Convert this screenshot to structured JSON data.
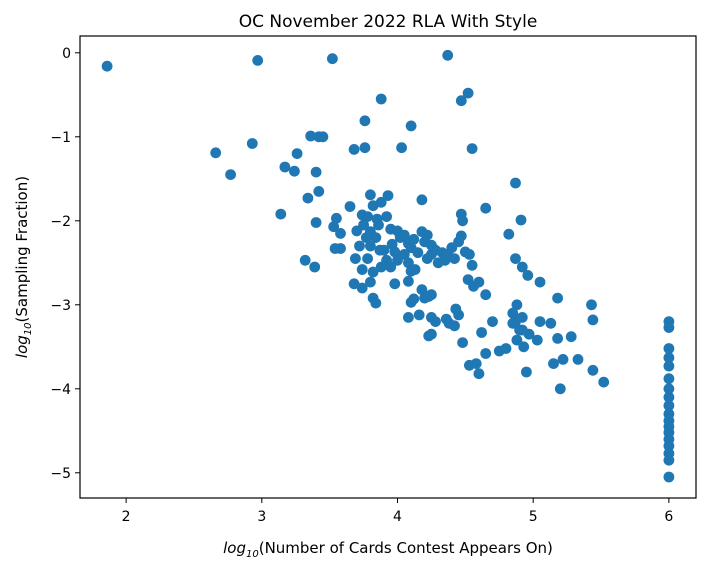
{
  "chart_data": {
    "type": "scatter",
    "title": "OC November 2022 RLA With Style",
    "xlabel_log": "log",
    "xlabel_sub": "10",
    "xlabel_rest": "(Number of Cards Contest Appears On)",
    "ylabel_log": "log",
    "ylabel_sub": "10",
    "ylabel_rest": "(Sampling Fraction)",
    "xlim": [
      1.66,
      6.2
    ],
    "ylim": [
      -5.3,
      0.2
    ],
    "xticks": [
      2,
      3,
      4,
      5,
      6
    ],
    "xtick_labels": [
      "2",
      "3",
      "4",
      "5",
      "6"
    ],
    "yticks": [
      0,
      -1,
      -2,
      -3,
      -4,
      -5
    ],
    "ytick_labels": [
      "0",
      "−1",
      "−2",
      "−3",
      "−4",
      "−5"
    ],
    "grid": false,
    "marker_color": "#1f77b4",
    "points": [
      [
        1.86,
        -0.16
      ],
      [
        2.97,
        -0.09
      ],
      [
        3.52,
        -0.07
      ],
      [
        4.37,
        -0.03
      ],
      [
        3.88,
        -0.55
      ],
      [
        4.47,
        -0.57
      ],
      [
        4.52,
        -0.48
      ],
      [
        3.76,
        -0.81
      ],
      [
        4.1,
        -0.87
      ],
      [
        3.36,
        -0.99
      ],
      [
        3.42,
        -1.0
      ],
      [
        3.45,
        -1.0
      ],
      [
        2.66,
        -1.19
      ],
      [
        2.93,
        -1.08
      ],
      [
        3.26,
        -1.2
      ],
      [
        3.68,
        -1.15
      ],
      [
        3.76,
        -1.13
      ],
      [
        4.03,
        -1.13
      ],
      [
        4.55,
        -1.14
      ],
      [
        2.77,
        -1.45
      ],
      [
        3.17,
        -1.36
      ],
      [
        3.24,
        -1.41
      ],
      [
        3.4,
        -1.42
      ],
      [
        3.42,
        -1.65
      ],
      [
        3.34,
        -1.73
      ],
      [
        3.14,
        -1.92
      ],
      [
        3.4,
        -2.02
      ],
      [
        3.55,
        -1.97
      ],
      [
        3.58,
        -2.15
      ],
      [
        3.58,
        -2.33
      ],
      [
        3.54,
        -2.33
      ],
      [
        3.32,
        -2.47
      ],
      [
        3.39,
        -2.55
      ],
      [
        3.53,
        -2.07
      ],
      [
        3.65,
        -1.83
      ],
      [
        3.74,
        -1.93
      ],
      [
        3.78,
        -1.95
      ],
      [
        3.8,
        -1.69
      ],
      [
        3.82,
        -1.82
      ],
      [
        3.85,
        -1.98
      ],
      [
        3.88,
        -1.78
      ],
      [
        3.93,
        -1.7
      ],
      [
        3.92,
        -1.95
      ],
      [
        3.8,
        -2.13
      ],
      [
        3.86,
        -2.05
      ],
      [
        3.84,
        -2.2
      ],
      [
        3.77,
        -2.2
      ],
      [
        3.75,
        -2.05
      ],
      [
        3.7,
        -2.12
      ],
      [
        3.72,
        -2.3
      ],
      [
        3.8,
        -2.3
      ],
      [
        3.78,
        -2.45
      ],
      [
        3.74,
        -2.58
      ],
      [
        3.69,
        -2.45
      ],
      [
        3.82,
        -2.61
      ],
      [
        3.88,
        -2.55
      ],
      [
        3.92,
        -2.47
      ],
      [
        3.96,
        -2.28
      ],
      [
        3.95,
        -2.55
      ],
      [
        3.98,
        -2.37
      ],
      [
        3.9,
        -2.35
      ],
      [
        3.87,
        -2.35
      ],
      [
        3.95,
        -2.1
      ],
      [
        4.0,
        -2.12
      ],
      [
        4.02,
        -2.2
      ],
      [
        4.05,
        -2.17
      ],
      [
        4.08,
        -2.27
      ],
      [
        4.1,
        -2.32
      ],
      [
        4.05,
        -2.4
      ],
      [
        4.0,
        -2.47
      ],
      [
        4.08,
        -2.5
      ],
      [
        4.1,
        -2.6
      ],
      [
        4.13,
        -2.58
      ],
      [
        4.15,
        -2.38
      ],
      [
        4.12,
        -2.22
      ],
      [
        4.18,
        -2.13
      ],
      [
        4.2,
        -2.25
      ],
      [
        4.22,
        -2.17
      ],
      [
        4.18,
        -1.75
      ],
      [
        4.25,
        -2.29
      ],
      [
        4.22,
        -2.45
      ],
      [
        4.25,
        -2.4
      ],
      [
        4.28,
        -2.35
      ],
      [
        4.3,
        -2.5
      ],
      [
        4.33,
        -2.38
      ],
      [
        4.35,
        -2.47
      ],
      [
        4.37,
        -2.4
      ],
      [
        4.4,
        -2.32
      ],
      [
        4.42,
        -2.45
      ],
      [
        4.45,
        -2.25
      ],
      [
        4.47,
        -2.18
      ],
      [
        4.47,
        -1.92
      ],
      [
        4.48,
        -2.0
      ],
      [
        4.5,
        -2.37
      ],
      [
        4.53,
        -2.4
      ],
      [
        4.55,
        -2.53
      ],
      [
        4.65,
        -1.85
      ],
      [
        4.82,
        -2.16
      ],
      [
        4.87,
        -1.55
      ],
      [
        4.87,
        -2.45
      ],
      [
        4.91,
        -1.99
      ],
      [
        4.92,
        -2.55
      ],
      [
        4.96,
        -2.65
      ],
      [
        3.68,
        -2.75
      ],
      [
        3.74,
        -2.8
      ],
      [
        3.8,
        -2.73
      ],
      [
        3.82,
        -2.92
      ],
      [
        3.84,
        -2.98
      ],
      [
        3.98,
        -2.75
      ],
      [
        4.08,
        -2.72
      ],
      [
        4.12,
        -2.93
      ],
      [
        4.1,
        -2.97
      ],
      [
        4.18,
        -2.82
      ],
      [
        4.2,
        -2.92
      ],
      [
        4.23,
        -2.9
      ],
      [
        4.25,
        -2.88
      ],
      [
        4.08,
        -3.15
      ],
      [
        4.16,
        -3.12
      ],
      [
        4.25,
        -3.15
      ],
      [
        4.28,
        -3.2
      ],
      [
        4.23,
        -3.37
      ],
      [
        4.25,
        -3.35
      ],
      [
        4.36,
        -3.17
      ],
      [
        4.38,
        -3.22
      ],
      [
        4.42,
        -3.25
      ],
      [
        4.45,
        -3.12
      ],
      [
        4.43,
        -3.05
      ],
      [
        4.52,
        -2.7
      ],
      [
        4.56,
        -2.78
      ],
      [
        4.6,
        -2.73
      ],
      [
        4.65,
        -2.88
      ],
      [
        4.48,
        -3.45
      ],
      [
        4.53,
        -3.72
      ],
      [
        4.58,
        -3.7
      ],
      [
        4.6,
        -3.82
      ],
      [
        4.62,
        -3.33
      ],
      [
        4.65,
        -3.58
      ],
      [
        4.7,
        -3.2
      ],
      [
        4.75,
        -3.55
      ],
      [
        4.8,
        -3.52
      ],
      [
        4.85,
        -3.1
      ],
      [
        4.87,
        -3.2
      ],
      [
        4.85,
        -3.22
      ],
      [
        4.88,
        -3.0
      ],
      [
        4.9,
        -3.3
      ],
      [
        4.88,
        -3.42
      ],
      [
        4.92,
        -3.15
      ],
      [
        4.92,
        -3.3
      ],
      [
        4.93,
        -3.5
      ],
      [
        4.95,
        -3.8
      ],
      [
        4.97,
        -3.35
      ],
      [
        5.03,
        -3.42
      ],
      [
        5.05,
        -3.2
      ],
      [
        5.05,
        -2.73
      ],
      [
        5.13,
        -3.22
      ],
      [
        5.15,
        -3.7
      ],
      [
        5.18,
        -2.92
      ],
      [
        5.18,
        -3.4
      ],
      [
        5.2,
        -4.0
      ],
      [
        5.22,
        -3.65
      ],
      [
        5.28,
        -3.38
      ],
      [
        5.33,
        -3.65
      ],
      [
        5.43,
        -3.0
      ],
      [
        5.44,
        -3.18
      ],
      [
        5.44,
        -3.78
      ],
      [
        5.52,
        -3.92
      ],
      [
        6.0,
        -3.2
      ],
      [
        6.0,
        -3.27
      ],
      [
        6.0,
        -3.52
      ],
      [
        6.0,
        -3.63
      ],
      [
        6.0,
        -3.73
      ],
      [
        6.0,
        -3.88
      ],
      [
        6.0,
        -4.0
      ],
      [
        6.0,
        -4.1
      ],
      [
        6.0,
        -4.2
      ],
      [
        6.0,
        -4.3
      ],
      [
        6.0,
        -4.38
      ],
      [
        6.0,
        -4.45
      ],
      [
        6.0,
        -4.52
      ],
      [
        6.0,
        -4.6
      ],
      [
        6.0,
        -4.68
      ],
      [
        6.0,
        -4.77
      ],
      [
        6.0,
        -4.85
      ],
      [
        6.0,
        -5.05
      ]
    ]
  }
}
